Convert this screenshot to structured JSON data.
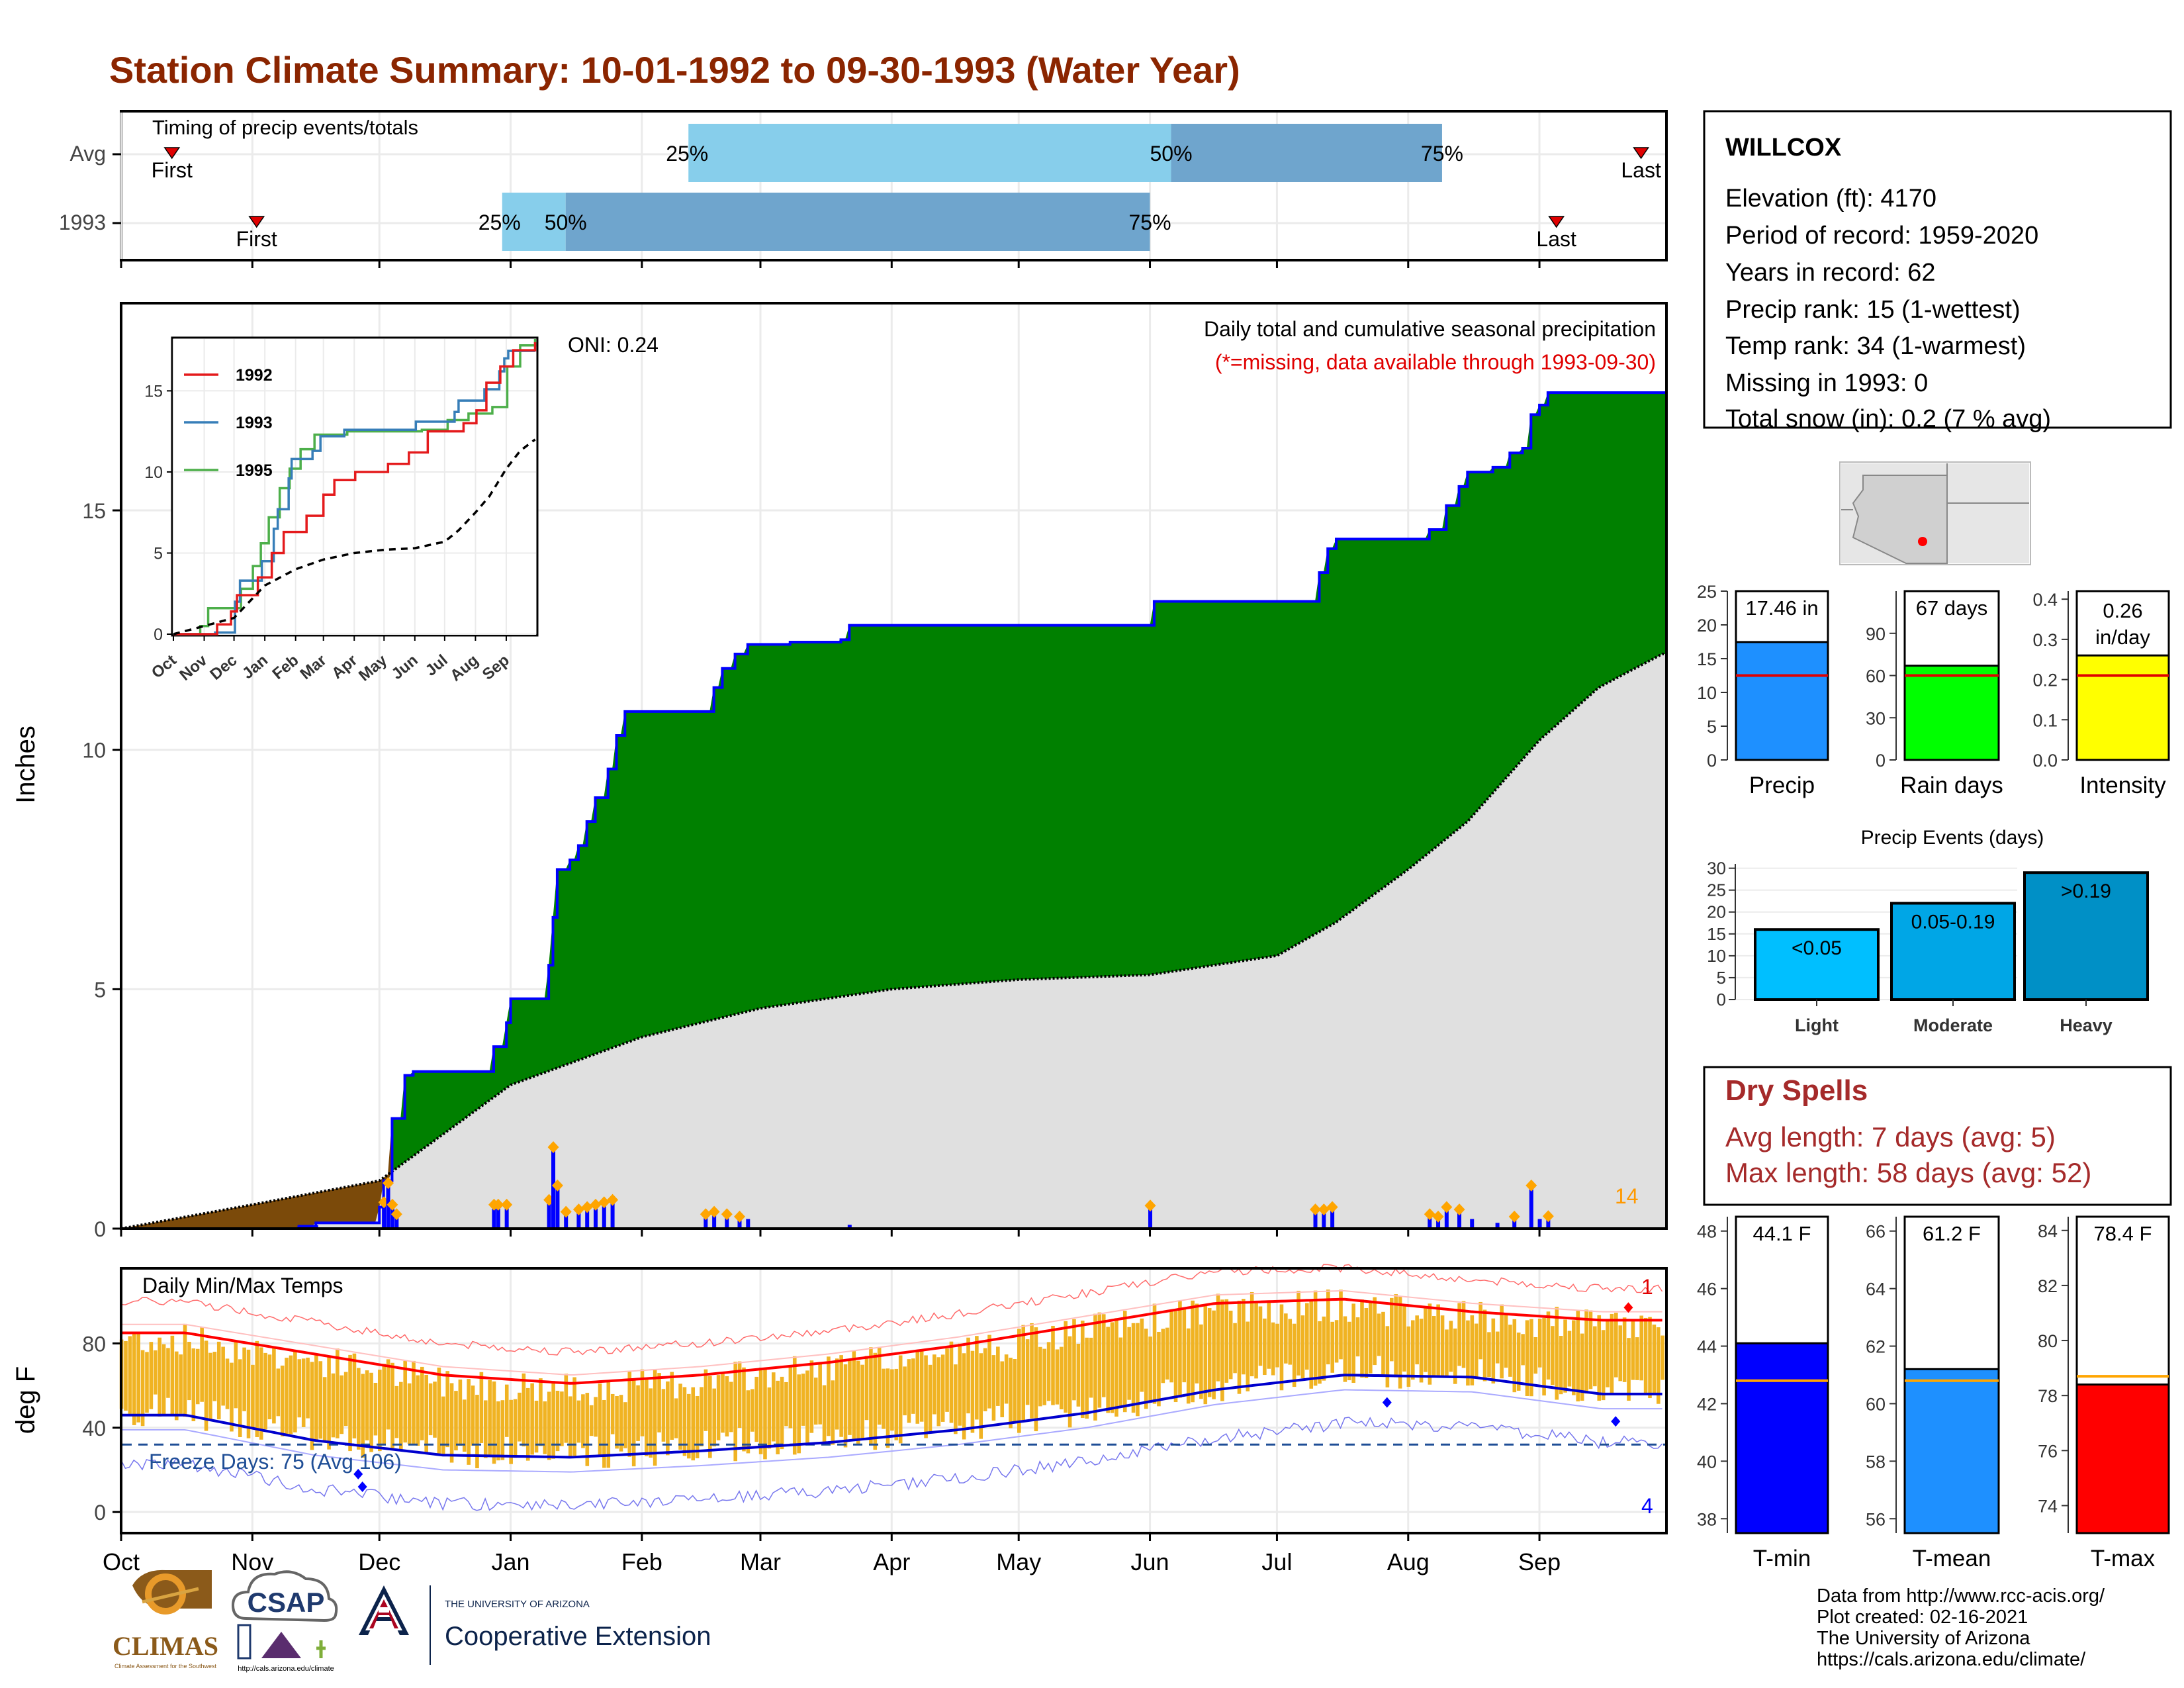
{
  "title": "Station Climate Summary: 10-01-1992 to 09-30-1993 (Water Year)",
  "months": [
    "Oct",
    "Nov",
    "Dec",
    "Jan",
    "Feb",
    "Mar",
    "Apr",
    "May",
    "Jun",
    "Jul",
    "Aug",
    "Sep"
  ],
  "timing": {
    "label": "Timing of precip events/totals",
    "rows": [
      {
        "name": "Avg",
        "first_label": "First",
        "last_label": "Last",
        "first": "Oct 13",
        "p25": "Feb 12",
        "p50": "Jun 6",
        "p75": "Aug 9",
        "last": "Sep 25"
      },
      {
        "name": "1993",
        "first_label": "First",
        "last_label": "Last",
        "first": "Nov 2",
        "p25": "Dec 30",
        "p50": "Jan 14",
        "p75": "Jun 1",
        "last": "Sep 5"
      }
    ],
    "pct_labels": [
      "25%",
      "50%",
      "75%"
    ]
  },
  "chart_data": [
    {
      "type": "area",
      "name": "precip-main",
      "ylabel": "Inches",
      "yticks": [
        0,
        5,
        10,
        15
      ],
      "ylim": [
        0,
        19.3
      ],
      "title_right": "Daily total and cumulative seasonal precipitation",
      "subtitle_right": "(*=missing, data available through 1993-09-30)",
      "oni_label": "ONI: 0.24",
      "count_label": "14",
      "cumulative_1993": [
        [
          "Oct 1",
          0
        ],
        [
          "Nov 12",
          0.05
        ],
        [
          "Nov 16",
          0.12
        ],
        [
          "Dec 1",
          0.45
        ],
        [
          "Dec 2",
          1.0
        ],
        [
          "Dec 4",
          2.3
        ],
        [
          "Dec 7",
          3.2
        ],
        [
          "Dec 9",
          3.28
        ],
        [
          "Dec 27",
          3.28
        ],
        [
          "Dec 28",
          3.8
        ],
        [
          "Dec 31",
          4.3
        ],
        [
          "Jan 1",
          4.8
        ],
        [
          "Jan 9",
          4.8
        ],
        [
          "Jan 10",
          5.5
        ],
        [
          "Jan 11",
          6.5
        ],
        [
          "Jan 12",
          7.5
        ],
        [
          "Jan 15",
          7.7
        ],
        [
          "Jan 17",
          8.0
        ],
        [
          "Jan 19",
          8.5
        ],
        [
          "Jan 21",
          9.0
        ],
        [
          "Jan 24",
          9.6
        ],
        [
          "Jan 26",
          10.3
        ],
        [
          "Jan 28",
          10.8
        ],
        [
          "Feb 16",
          10.8
        ],
        [
          "Feb 18",
          11.3
        ],
        [
          "Feb 20",
          11.7
        ],
        [
          "Feb 23",
          12.0
        ],
        [
          "Feb 26",
          12.2
        ],
        [
          "Mar 8",
          12.25
        ],
        [
          "Mar 20",
          12.3
        ],
        [
          "Mar 22",
          12.6
        ],
        [
          "Jun 1",
          12.6
        ],
        [
          "Jun 2",
          13.1
        ],
        [
          "Jul 9",
          13.1
        ],
        [
          "Jul 11",
          13.7
        ],
        [
          "Jul 13",
          14.2
        ],
        [
          "Jul 15",
          14.4
        ],
        [
          "Aug 4",
          14.4
        ],
        [
          "Aug 6",
          14.6
        ],
        [
          "Aug 10",
          15.1
        ],
        [
          "Aug 13",
          15.5
        ],
        [
          "Aug 15",
          15.8
        ],
        [
          "Aug 21",
          15.9
        ],
        [
          "Aug 25",
          16.2
        ],
        [
          "Aug 28",
          16.3
        ],
        [
          "Aug 30",
          17.0
        ],
        [
          "Sep 1",
          17.2
        ],
        [
          "Sep 3",
          17.46
        ],
        [
          "Sep 30",
          17.46
        ]
      ],
      "cumulative_avg": [
        [
          "Oct 1",
          0
        ],
        [
          "Nov 1",
          0.5
        ],
        [
          "Dec 1",
          1.0
        ],
        [
          "Jan 1",
          3.0
        ],
        [
          "Feb 1",
          4.0
        ],
        [
          "Mar 1",
          4.6
        ],
        [
          "Apr 1",
          5.0
        ],
        [
          "May 1",
          5.2
        ],
        [
          "Jun 1",
          5.3
        ],
        [
          "Jul 1",
          5.7
        ],
        [
          "Jul 15",
          6.4
        ],
        [
          "Aug 1",
          7.5
        ],
        [
          "Aug 15",
          8.5
        ],
        [
          "Sep 1",
          10.2
        ],
        [
          "Sep 15",
          11.3
        ],
        [
          "Sep 30",
          12.0
        ]
      ],
      "daily_1993": [
        [
          "Nov 12",
          0.05
        ],
        [
          "Nov 16",
          0.07
        ],
        [
          "Dec 2",
          0.55
        ],
        [
          "Dec 3",
          0.95
        ],
        [
          "Dec 4",
          0.5
        ],
        [
          "Dec 5",
          0.3
        ],
        [
          "Dec 28",
          0.5
        ],
        [
          "Dec 29",
          0.5
        ],
        [
          "Dec 31",
          0.5
        ],
        [
          "Jan 10",
          0.6
        ],
        [
          "Jan 11",
          1.7
        ],
        [
          "Jan 12",
          0.9
        ],
        [
          "Jan 14",
          0.35
        ],
        [
          "Jan 17",
          0.4
        ],
        [
          "Jan 19",
          0.45
        ],
        [
          "Jan 21",
          0.5
        ],
        [
          "Jan 23",
          0.55
        ],
        [
          "Jan 25",
          0.6
        ],
        [
          "Feb 16",
          0.3
        ],
        [
          "Feb 18",
          0.35
        ],
        [
          "Feb 21",
          0.3
        ],
        [
          "Feb 24",
          0.25
        ],
        [
          "Feb 26",
          0.2
        ],
        [
          "Mar 22",
          0.08
        ],
        [
          "Jun 1",
          0.48
        ],
        [
          "Jul 10",
          0.4
        ],
        [
          "Jul 12",
          0.4
        ],
        [
          "Jul 14",
          0.45
        ],
        [
          "Aug 6",
          0.3
        ],
        [
          "Aug 8",
          0.25
        ],
        [
          "Aug 10",
          0.45
        ],
        [
          "Aug 13",
          0.4
        ],
        [
          "Aug 16",
          0.2
        ],
        [
          "Aug 22",
          0.12
        ],
        [
          "Aug 26",
          0.25
        ],
        [
          "Aug 30",
          0.9
        ],
        [
          "Sep 1",
          0.2
        ],
        [
          "Sep 3",
          0.26
        ]
      ],
      "legend_colors": {
        "above": "#008000",
        "below": "#7b4a0a",
        "avg_fill": "#e0e0e0",
        "line": "#0000ff"
      }
    },
    {
      "type": "line",
      "name": "inset-cumulative",
      "xticks": [
        "Oct",
        "Nov",
        "Dec",
        "Jan",
        "Feb",
        "Mar",
        "Apr",
        "May",
        "Jun",
        "Jul",
        "Aug",
        "Sep"
      ],
      "yticks": [
        0,
        5,
        10,
        15
      ],
      "series": [
        {
          "name": "1992",
          "color": "#e41a1c"
        },
        {
          "name": "1993",
          "color": "#377eb8"
        },
        {
          "name": "1995",
          "color": "#4daf4a"
        }
      ]
    },
    {
      "type": "line",
      "name": "temps",
      "title": "Daily Min/Max Temps",
      "ylabel": "deg F",
      "yticks": [
        0,
        40,
        80
      ],
      "ylim": [
        -10,
        115
      ],
      "freeze_label": "Freeze Days: 75 (Avg 106)",
      "record_high_count": "1",
      "record_low_count": "4",
      "avg_max_by_month": [
        82,
        72,
        62,
        58,
        62,
        68,
        76,
        86,
        96,
        98,
        92,
        88
      ],
      "avg_min_by_month": [
        48,
        36,
        29,
        28,
        31,
        35,
        41,
        49,
        60,
        67,
        66,
        58
      ]
    },
    {
      "type": "bar",
      "name": "precip-total",
      "categories": [
        "Precip"
      ],
      "values": [
        17.46
      ],
      "label": "17.46 in",
      "avg": 12.5,
      "yticks": [
        0,
        5,
        10,
        15,
        20,
        25
      ],
      "ylim": [
        0,
        25
      ],
      "color": "#1e90ff"
    },
    {
      "type": "bar",
      "name": "rain-days",
      "categories": [
        "Rain days"
      ],
      "values": [
        67
      ],
      "label": "67 days",
      "avg": 60,
      "yticks": [
        0,
        30,
        60,
        90
      ],
      "ylim": [
        0,
        120
      ],
      "color": "#00ff00"
    },
    {
      "type": "bar",
      "name": "intensity",
      "categories": [
        "Intensity"
      ],
      "values": [
        0.26
      ],
      "label_lines": [
        "0.26",
        "in/day"
      ],
      "avg": 0.21,
      "yticks": [
        0.0,
        0.1,
        0.2,
        0.3,
        0.4
      ],
      "ylim": [
        0,
        0.42
      ],
      "color": "#ffff00"
    },
    {
      "type": "bar",
      "name": "precip-events",
      "title": "Precip Events (days)",
      "categories": [
        "Light",
        "Moderate",
        "Heavy"
      ],
      "values": [
        16,
        22,
        29
      ],
      "bar_labels": [
        "<0.05",
        "0.05-0.19",
        ">0.19"
      ],
      "colors": [
        "#00bfff",
        "#00a6e6",
        "#0090c6"
      ],
      "yticks": [
        0,
        5,
        10,
        15,
        20,
        25,
        30
      ],
      "ylim": [
        0,
        31
      ]
    },
    {
      "type": "bar",
      "name": "t-min",
      "categories": [
        "T-min"
      ],
      "values": [
        44.1
      ],
      "label": "44.1 F",
      "avg": 42.8,
      "yticks": [
        38,
        40,
        42,
        44,
        46,
        48
      ],
      "ylim": [
        37.5,
        48.5
      ],
      "color": "#0000ff"
    },
    {
      "type": "bar",
      "name": "t-mean",
      "categories": [
        "T-mean"
      ],
      "values": [
        61.2
      ],
      "label": "61.2 F",
      "avg": 60.8,
      "yticks": [
        56,
        58,
        60,
        62,
        64,
        66
      ],
      "ylim": [
        55.5,
        66.5
      ],
      "color": "#1e90ff"
    },
    {
      "type": "bar",
      "name": "t-max",
      "categories": [
        "T-max"
      ],
      "values": [
        78.4
      ],
      "label": "78.4 F",
      "avg": 78.7,
      "yticks": [
        74,
        76,
        78,
        80,
        82,
        84
      ],
      "ylim": [
        73,
        84.5
      ],
      "color": "#ff0000"
    }
  ],
  "station": {
    "name": "WILLCOX",
    "lines": [
      "Elevation (ft): 4170",
      "Period of record: 1959-2020",
      "Years in record: 62",
      "Precip rank: 15 (1-wettest)",
      "Temp rank: 34 (1-warmest)",
      "Missing in 1993: 0",
      "Total snow (in): 0.2 (7 % avg)"
    ]
  },
  "dry_spells": {
    "title": "Dry Spells",
    "lines": [
      "Avg length: 7 days (avg: 5)",
      "Max length: 58 days (avg: 52)"
    ]
  },
  "footer": {
    "lines": [
      "Data from http://www.rcc-acis.org/",
      "Plot created: 02-16-2021",
      "The University of Arizona",
      "https://cals.arizona.edu/climate/"
    ],
    "logos": {
      "climas": "CLIMAS",
      "climas_sub": "Climate Assessment for the Southwest",
      "csap": "CSAP",
      "csap_url": "http://cals.arizona.edu/climate",
      "ua_small": "THE UNIVERSITY OF ARIZONA",
      "ua_big": "Cooperative Extension"
    }
  }
}
